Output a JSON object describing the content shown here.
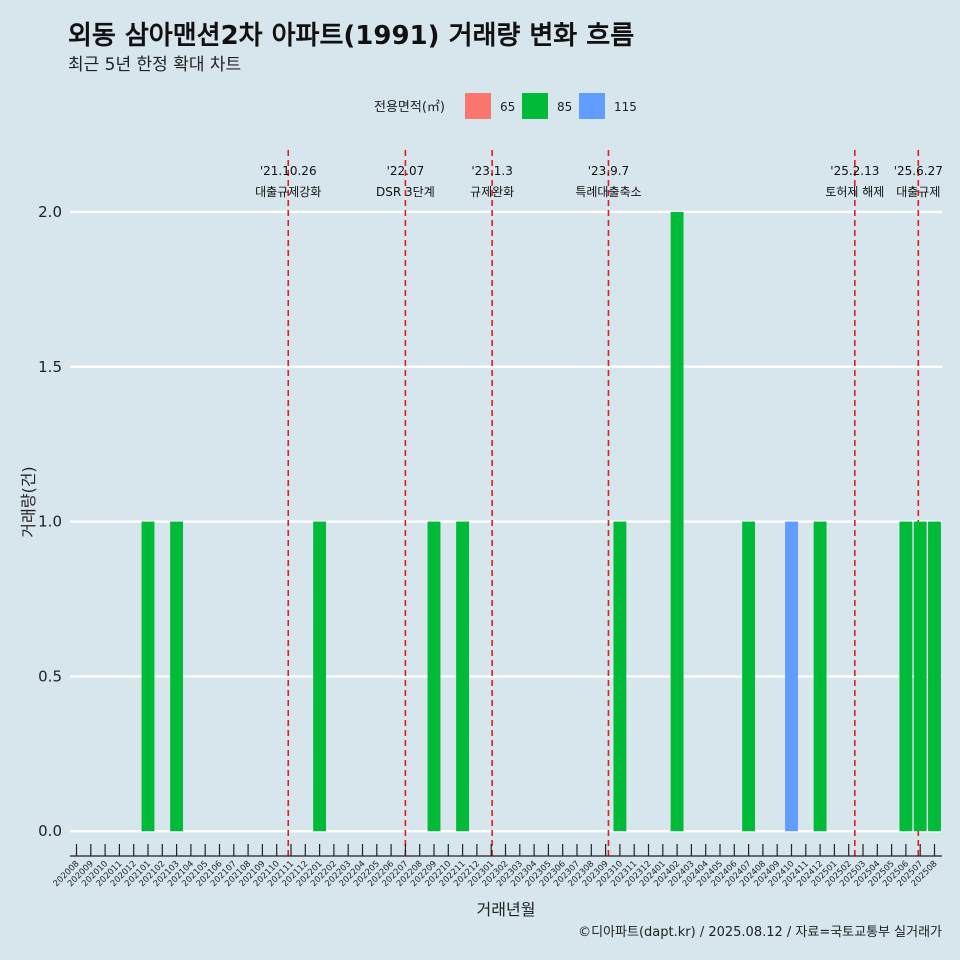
{
  "header": {
    "title": "외동 삼아맨션2차 아파트(1991) 거래량 변화 흐름",
    "subtitle": "최근 5년 한정 확대 차트"
  },
  "caption": "©디아파트(dapt.kr) / 2025.08.12 / 자료=국토교통부 실거래가",
  "legend": {
    "title": "전용면적(㎡)",
    "placement": "top",
    "items": [
      {
        "label": "65",
        "color": "#f8766d"
      },
      {
        "label": "85",
        "color": "#00ba38"
      },
      {
        "label": "115",
        "color": "#619cff"
      }
    ]
  },
  "chart_data": {
    "type": "bar",
    "xlabel": "거래년월",
    "ylabel": "거래량(건)",
    "ylim": [
      -0.08,
      2.2
    ],
    "yticks": [
      0.0,
      0.5,
      1.0,
      1.5,
      2.0
    ],
    "ytick_labels": [
      "0.0",
      "0.5",
      "1.0",
      "1.5",
      "2.0"
    ],
    "grid": true,
    "categories": [
      "202008",
      "202009",
      "202010",
      "202011",
      "202012",
      "202101",
      "202102",
      "202103",
      "202104",
      "202105",
      "202106",
      "202107",
      "202108",
      "202109",
      "202110",
      "202111",
      "202112",
      "202201",
      "202202",
      "202203",
      "202204",
      "202205",
      "202206",
      "202207",
      "202208",
      "202209",
      "202210",
      "202211",
      "202212",
      "202301",
      "202302",
      "202303",
      "202304",
      "202305",
      "202306",
      "202307",
      "202308",
      "202309",
      "202310",
      "202311",
      "202312",
      "202401",
      "202402",
      "202403",
      "202404",
      "202405",
      "202406",
      "202407",
      "202408",
      "202409",
      "202410",
      "202411",
      "202412",
      "202501",
      "202502",
      "202503",
      "202504",
      "202505",
      "202506",
      "202507",
      "202508"
    ],
    "bars": [
      {
        "month": "202101",
        "area": "85",
        "value": 1
      },
      {
        "month": "202103",
        "area": "85",
        "value": 1
      },
      {
        "month": "202201",
        "area": "85",
        "value": 1
      },
      {
        "month": "202209",
        "area": "85",
        "value": 1
      },
      {
        "month": "202211",
        "area": "85",
        "value": 1
      },
      {
        "month": "202310",
        "area": "85",
        "value": 1
      },
      {
        "month": "202402",
        "area": "85",
        "value": 2
      },
      {
        "month": "202407",
        "area": "85",
        "value": 1
      },
      {
        "month": "202410",
        "area": "115",
        "value": 1
      },
      {
        "month": "202412",
        "area": "85",
        "value": 1
      },
      {
        "month": "202506",
        "area": "85",
        "value": 1
      },
      {
        "month": "202507",
        "area": "85",
        "value": 1
      },
      {
        "month": "202508",
        "area": "85",
        "value": 1
      }
    ],
    "events": [
      {
        "date": "2021-10-26",
        "label1": "'21.10.26",
        "label2": "대출규제강화"
      },
      {
        "date": "2022-07-01",
        "label1": "'22.07",
        "label2": "DSR 3단계"
      },
      {
        "date": "2023-01-03",
        "label1": "'23.1.3",
        "label2": "규제완화"
      },
      {
        "date": "2023-09-07",
        "label1": "'23.9.7",
        "label2": "특례대출축소"
      },
      {
        "date": "2025-02-13",
        "label1": "'25.2.13",
        "label2": "토허제 해제"
      },
      {
        "date": "2025-06-27",
        "label1": "'25.6.27",
        "label2": "대출규제"
      }
    ],
    "event_line_color": "#e41a1c"
  }
}
